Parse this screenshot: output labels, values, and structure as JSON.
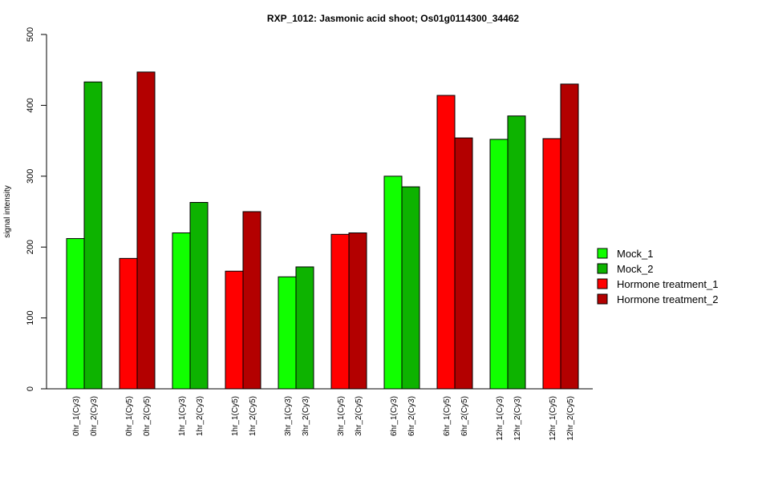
{
  "chart_data": {
    "type": "bar",
    "title": "RXP_1012: Jasmonic acid shoot; Os01g0114300_34462",
    "xlabel": "",
    "ylabel": "signal intensity",
    "ylim": [
      0,
      500
    ],
    "yticks": [
      0,
      100,
      200,
      300,
      400,
      500
    ],
    "grid": false,
    "legend_position": "right",
    "legend": [
      {
        "label": "Mock_1",
        "color": "#11ff00"
      },
      {
        "label": "Mock_2",
        "color": "#0db300"
      },
      {
        "label": "Hormone treatment_1",
        "color": "#ff0000"
      },
      {
        "label": "Hormone treatment_2",
        "color": "#b30000"
      }
    ],
    "groups": [
      {
        "bars": [
          {
            "label": "0hr_1(Cy3)",
            "value": 212,
            "color": "#11ff00"
          },
          {
            "label": "0hr_2(Cy3)",
            "value": 433,
            "color": "#0db300"
          }
        ]
      },
      {
        "bars": [
          {
            "label": "0hr_1(Cy5)",
            "value": 184,
            "color": "#ff0000"
          },
          {
            "label": "0hr_2(Cy5)",
            "value": 447,
            "color": "#b30000"
          }
        ]
      },
      {
        "bars": [
          {
            "label": "1hr_1(Cy3)",
            "value": 220,
            "color": "#11ff00"
          },
          {
            "label": "1hr_2(Cy3)",
            "value": 263,
            "color": "#0db300"
          }
        ]
      },
      {
        "bars": [
          {
            "label": "1hr_1(Cy5)",
            "value": 166,
            "color": "#ff0000"
          },
          {
            "label": "1hr_2(Cy5)",
            "value": 250,
            "color": "#b30000"
          }
        ]
      },
      {
        "bars": [
          {
            "label": "3hr_1(Cy3)",
            "value": 158,
            "color": "#11ff00"
          },
          {
            "label": "3hr_2(Cy3)",
            "value": 172,
            "color": "#0db300"
          }
        ]
      },
      {
        "bars": [
          {
            "label": "3hr_1(Cy5)",
            "value": 218,
            "color": "#ff0000"
          },
          {
            "label": "3hr_2(Cy5)",
            "value": 220,
            "color": "#b30000"
          }
        ]
      },
      {
        "bars": [
          {
            "label": "6hr_1(Cy3)",
            "value": 300,
            "color": "#11ff00"
          },
          {
            "label": "6hr_2(Cy3)",
            "value": 285,
            "color": "#0db300"
          }
        ]
      },
      {
        "bars": [
          {
            "label": "6hr_1(Cy5)",
            "value": 414,
            "color": "#ff0000"
          },
          {
            "label": "6hr_2(Cy5)",
            "value": 354,
            "color": "#b30000"
          }
        ]
      },
      {
        "bars": [
          {
            "label": "12hr_1(Cy3)",
            "value": 352,
            "color": "#11ff00"
          },
          {
            "label": "12hr_2(Cy3)",
            "value": 385,
            "color": "#0db300"
          }
        ]
      },
      {
        "bars": [
          {
            "label": "12hr_1(Cy5)",
            "value": 353,
            "color": "#ff0000"
          },
          {
            "label": "12hr_2(Cy5)",
            "value": 430,
            "color": "#b30000"
          }
        ]
      }
    ]
  }
}
